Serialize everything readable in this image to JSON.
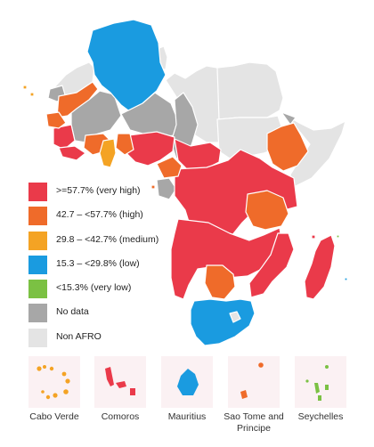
{
  "colors": {
    "very_high": "#ea3a4a",
    "high": "#ef6b2a",
    "medium": "#f4a324",
    "low": "#1a9be0",
    "very_low": "#7bc143",
    "no_data": "#a7a7a7",
    "non_afro": "#e4e4e4",
    "border": "#ffffff",
    "inset_bg": "#fbf1f3"
  },
  "legend": [
    {
      "key": "very_high",
      "label": ">=57.7% (very high)"
    },
    {
      "key": "high",
      "label": "42.7 – <57.7% (high)"
    },
    {
      "key": "medium",
      "label": "29.8 – <42.7% (medium)"
    },
    {
      "key": "low",
      "label": "15.3 – <29.8% (low)"
    },
    {
      "key": "very_low",
      "label": "<15.3% (very low)"
    },
    {
      "key": "no_data",
      "label": "No data"
    },
    {
      "key": "non_afro",
      "label": "Non AFRO"
    }
  ],
  "insets": [
    {
      "label": "Cabo Verde",
      "category": "medium"
    },
    {
      "label": "Comoros",
      "category": "very_high"
    },
    {
      "label": "Mauritius",
      "category": "low"
    },
    {
      "label": "Sao Tome and Principe",
      "category": "high"
    },
    {
      "label": "Seychelles",
      "category": "very_low"
    }
  ]
}
